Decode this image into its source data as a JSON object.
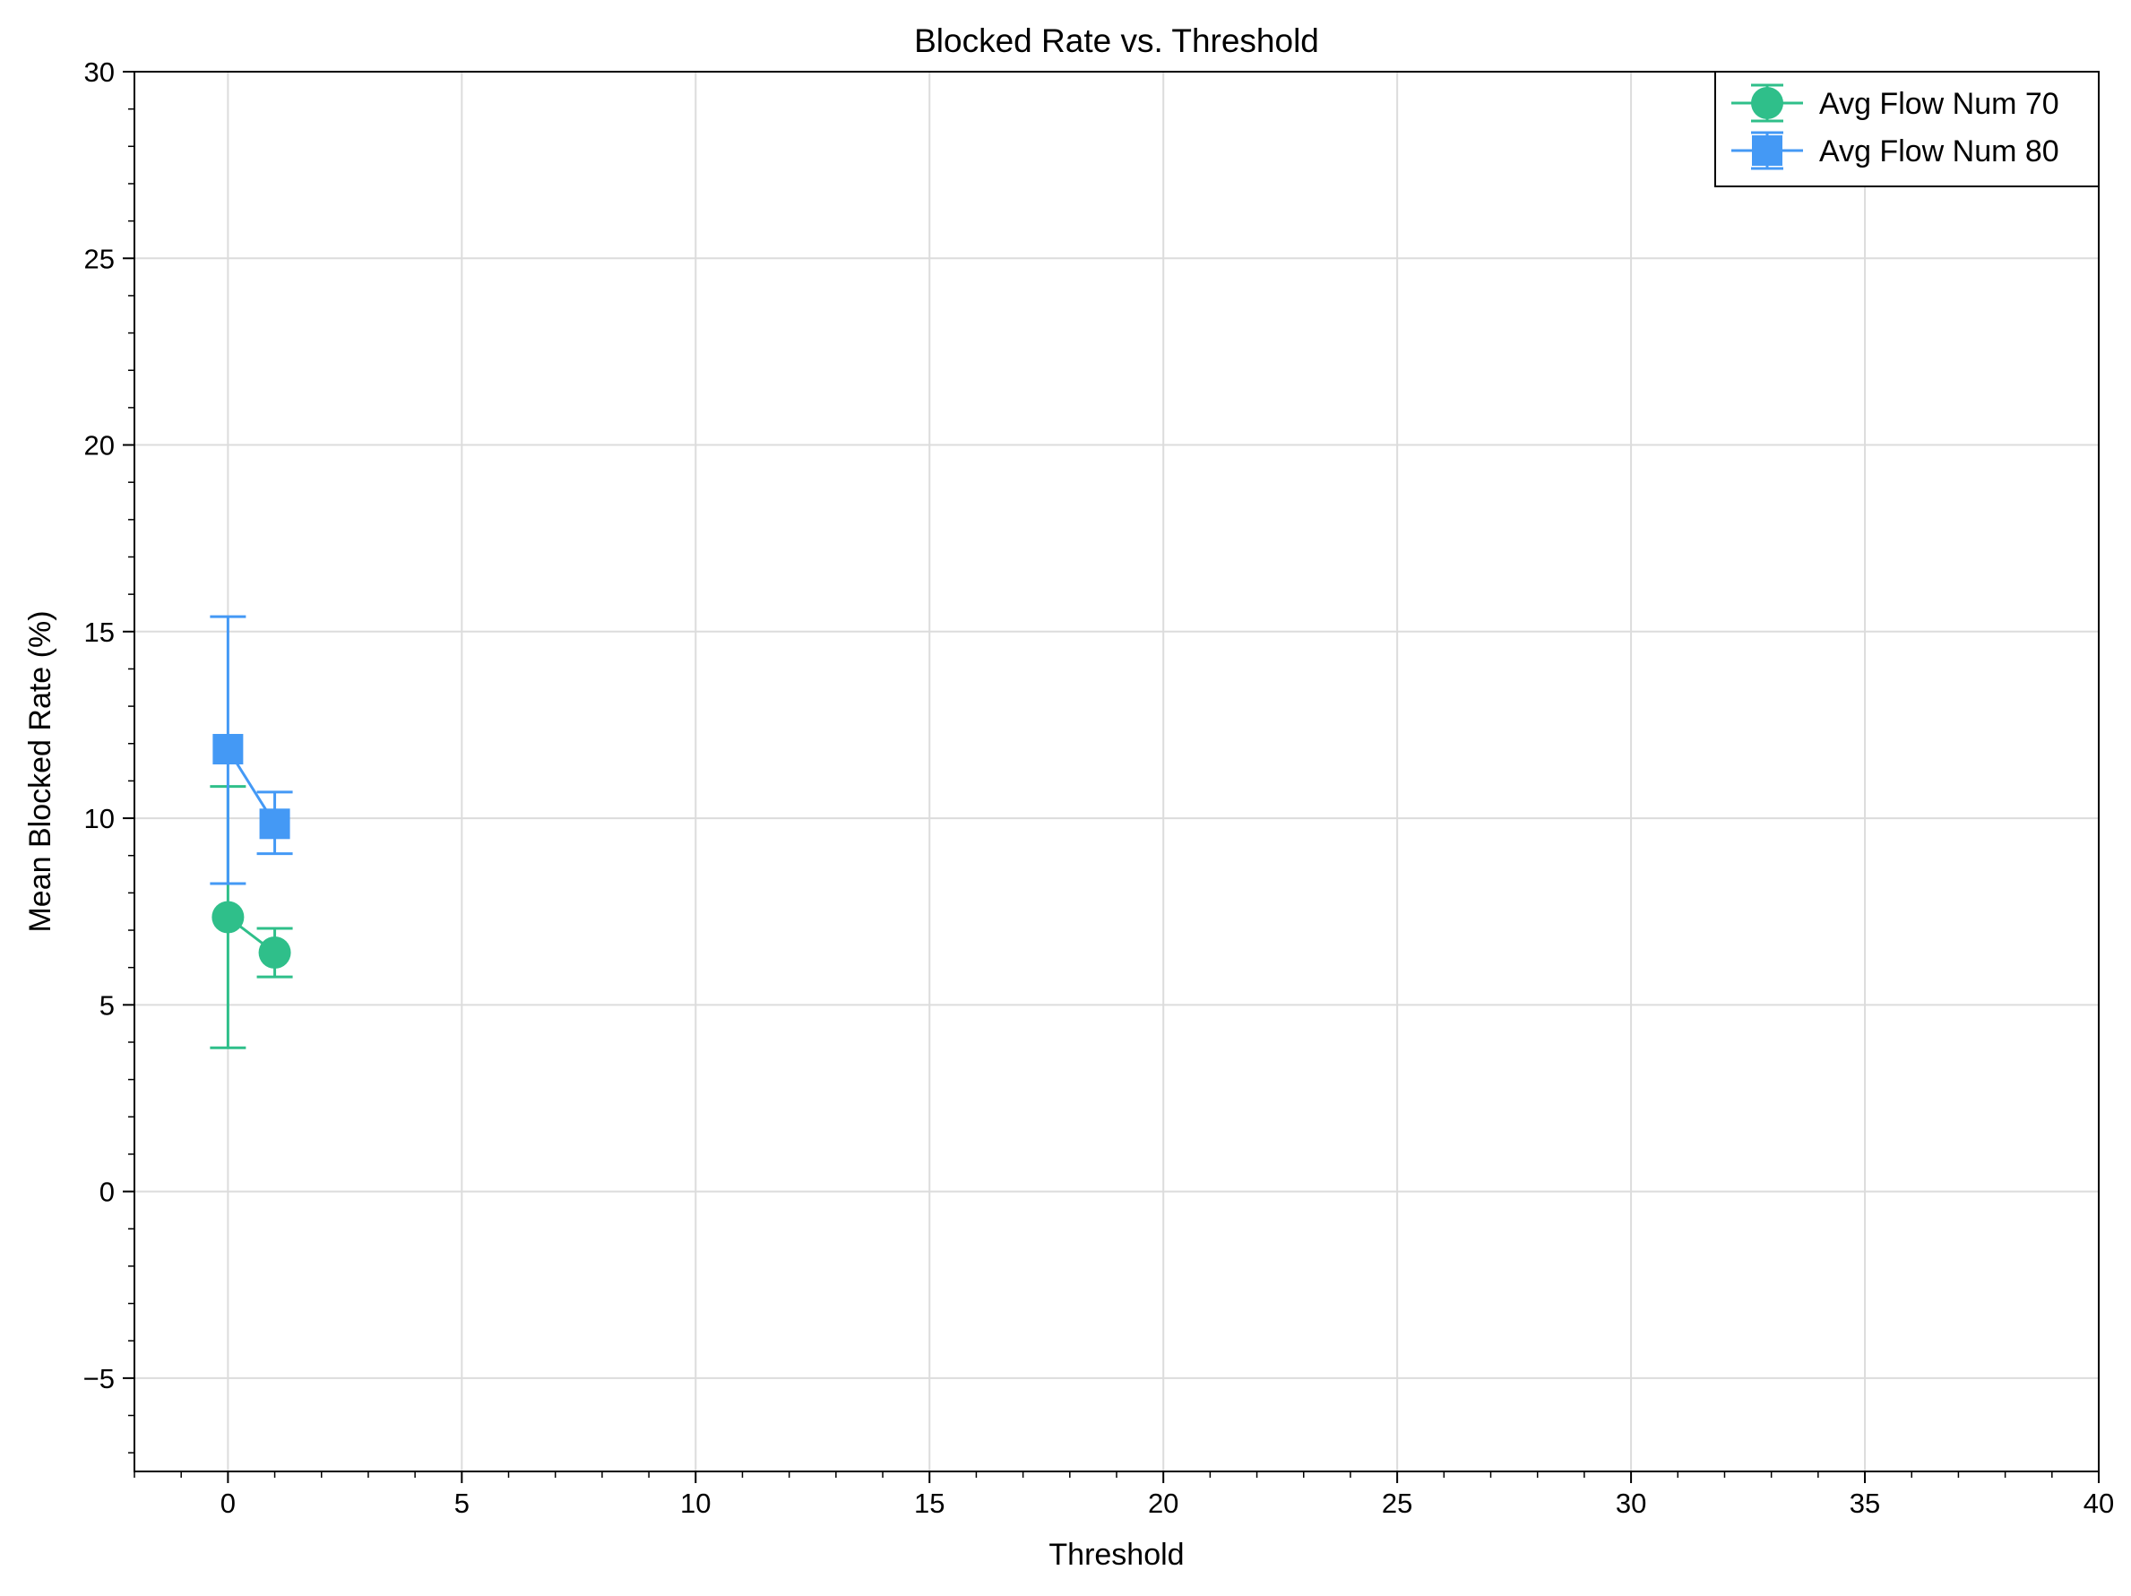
{
  "chart_data": {
    "type": "line",
    "title": "Blocked Rate vs. Threshold",
    "xlabel": "Threshold",
    "ylabel": "Mean Blocked Rate (%)",
    "xlim": [
      -2,
      40
    ],
    "ylim": [
      -7.5,
      30
    ],
    "xticks": [
      0,
      5,
      10,
      15,
      20,
      25,
      30,
      35,
      40
    ],
    "yticks": [
      -5,
      0,
      5,
      10,
      15,
      20,
      25,
      30
    ],
    "xtick_labels": [
      "0",
      "5",
      "10",
      "15",
      "20",
      "25",
      "30",
      "35",
      "40"
    ],
    "ytick_labels": [
      "−5",
      "0",
      "5",
      "10",
      "15",
      "20",
      "25",
      "30"
    ],
    "grid": true,
    "legend_position": "top-right",
    "series": [
      {
        "name": "Avg Flow Num 70",
        "color": "#2fbf8a",
        "marker": "circle",
        "x": [
          0,
          1
        ],
        "y": [
          7.35,
          6.4
        ],
        "err_low": [
          3.85,
          5.75
        ],
        "err_high": [
          10.85,
          7.05
        ]
      },
      {
        "name": "Avg Flow Num 80",
        "color": "#4499f5",
        "marker": "square",
        "x": [
          0,
          1
        ],
        "y": [
          11.85,
          9.85
        ],
        "err_low": [
          8.25,
          9.05
        ],
        "err_high": [
          15.4,
          10.7
        ]
      }
    ]
  }
}
